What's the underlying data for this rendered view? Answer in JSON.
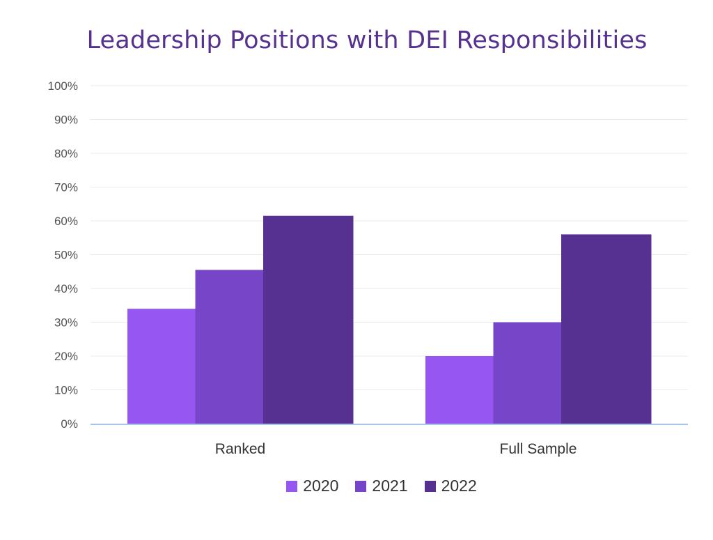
{
  "chart_data": {
    "type": "bar",
    "title": "Leadership Positions with DEI Responsibilities",
    "categories": [
      "Ranked",
      "Full Sample"
    ],
    "series": [
      {
        "name": "2020",
        "color": "#9656F2",
        "values": [
          34,
          20
        ]
      },
      {
        "name": "2021",
        "color": "#7745C8",
        "values": [
          45.5,
          30
        ]
      },
      {
        "name": "2022",
        "color": "#573192",
        "values": [
          61.5,
          56
        ]
      }
    ],
    "ylim": [
      0,
      100
    ],
    "yticks": [
      "0%",
      "10%",
      "20%",
      "30%",
      "40%",
      "50%",
      "60%",
      "70%",
      "80%",
      "90%",
      "100%"
    ],
    "xlabel": "",
    "ylabel": "",
    "grid": true,
    "legend_position": "bottom"
  }
}
